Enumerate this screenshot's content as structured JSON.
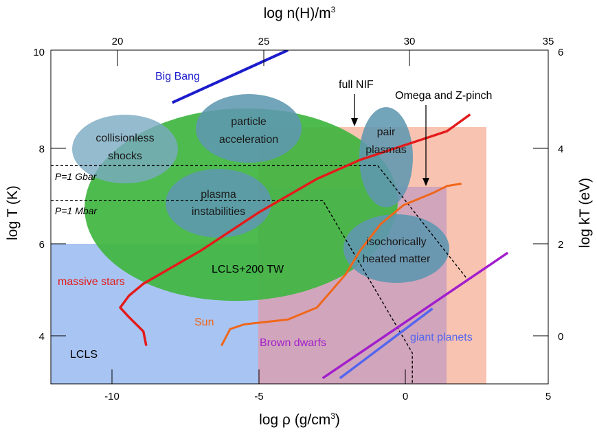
{
  "chart_data": {
    "type": "scatter",
    "axes": {
      "x_bottom": {
        "label_base": "log ρ (g/cm",
        "label_sup": "3",
        "label_tail": ")",
        "range": [
          -12.2,
          5
        ],
        "ticks": [
          -10,
          -5,
          0,
          5
        ],
        "tick_labels": [
          "-10",
          "-5",
          "0",
          "5"
        ]
      },
      "x_top": {
        "label_base": "log n(H)/m",
        "label_sup": "3",
        "ticks": [
          20,
          25,
          30,
          35
        ],
        "tick_labels": [
          "20",
          "25",
          "30",
          "35"
        ]
      },
      "y_left": {
        "label": "log T (K)",
        "range": [
          3,
          10
        ],
        "ticks": [
          4,
          6,
          8,
          10
        ],
        "tick_labels": [
          "4",
          "6",
          "8",
          "10"
        ]
      },
      "y_right": {
        "label": "log kT (eV)",
        "ticks": [
          0,
          2,
          4,
          6
        ],
        "tick_labels": [
          "0",
          "2",
          "4",
          "6"
        ]
      }
    },
    "regions": [
      {
        "label": "LCLS",
        "color": "#a8c4f2"
      },
      {
        "label": "full NIF",
        "color": "#f9c3b2"
      },
      {
        "label": "Omega and Z-pinch",
        "color": "#b18cc2"
      },
      {
        "label": "LCLS+200 TW",
        "color": "#3fb540"
      }
    ],
    "sub_regions": [
      {
        "label_line1": "collisionless",
        "label_line2": "shocks"
      },
      {
        "label_line1": "particle",
        "label_line2": "acceleration"
      },
      {
        "label_line1": "plasma",
        "label_line2": "instabilities"
      },
      {
        "label_line1": "pair",
        "label_line2": "plasmas"
      },
      {
        "label_line1": "isochorically",
        "label_line2": "heated matter"
      }
    ],
    "series": [
      {
        "name": "Big Bang",
        "color": "#1c1ccc",
        "points": [
          [
            -8,
            8.9
          ],
          [
            -4,
            10
          ]
        ]
      },
      {
        "name": "massive stars",
        "color": "#e31b1b",
        "points": [
          [
            -8.9,
            3.8
          ],
          [
            -9.0,
            4.1
          ],
          [
            -9.5,
            4.4
          ],
          [
            -9.8,
            4.6
          ],
          [
            -9.5,
            4.85
          ],
          [
            -9.0,
            5.1
          ],
          [
            -7.0,
            5.8
          ],
          [
            -5.0,
            6.6
          ],
          [
            -3.0,
            7.3
          ],
          [
            -1.5,
            7.7
          ],
          [
            0.0,
            8.0
          ],
          [
            1.0,
            8.2
          ],
          [
            1.5,
            8.3
          ],
          [
            2.3,
            8.65
          ]
        ]
      },
      {
        "name": "Sun",
        "color": "#f0661a",
        "points": [
          [
            -6.3,
            3.8
          ],
          [
            -6.0,
            4.15
          ],
          [
            -5.5,
            4.25
          ],
          [
            -4.0,
            4.35
          ],
          [
            -3.0,
            4.6
          ],
          [
            -2.0,
            5.3
          ],
          [
            -1.5,
            5.8
          ],
          [
            -0.8,
            6.35
          ],
          [
            0.0,
            6.75
          ],
          [
            1.0,
            7.0
          ],
          [
            1.5,
            7.15
          ],
          [
            2.0,
            7.2
          ]
        ]
      },
      {
        "name": "Brown dwarfs",
        "color": "#a21ecc",
        "points": [
          [
            -2.8,
            3.12
          ],
          [
            3.6,
            5.75
          ]
        ]
      },
      {
        "name": "giant planets",
        "color": "#5566ee",
        "points": [
          [
            -2.2,
            3.12
          ],
          [
            1.0,
            4.58
          ]
        ]
      }
    ],
    "reference_lines": [
      {
        "label": "P=1 Gbar",
        "points": [
          [
            -12.2,
            7.58
          ],
          [
            -0.9,
            7.58
          ],
          [
            2.2,
            5.2
          ]
        ]
      },
      {
        "label": "P=1 Mbar",
        "points": [
          [
            -12.2,
            6.85
          ],
          [
            -2.8,
            6.85
          ],
          [
            0.3,
            3.65
          ],
          [
            0.3,
            3
          ]
        ]
      }
    ],
    "annotation_labels": [
      "full NIF",
      "Omega and Z-pinch"
    ]
  }
}
